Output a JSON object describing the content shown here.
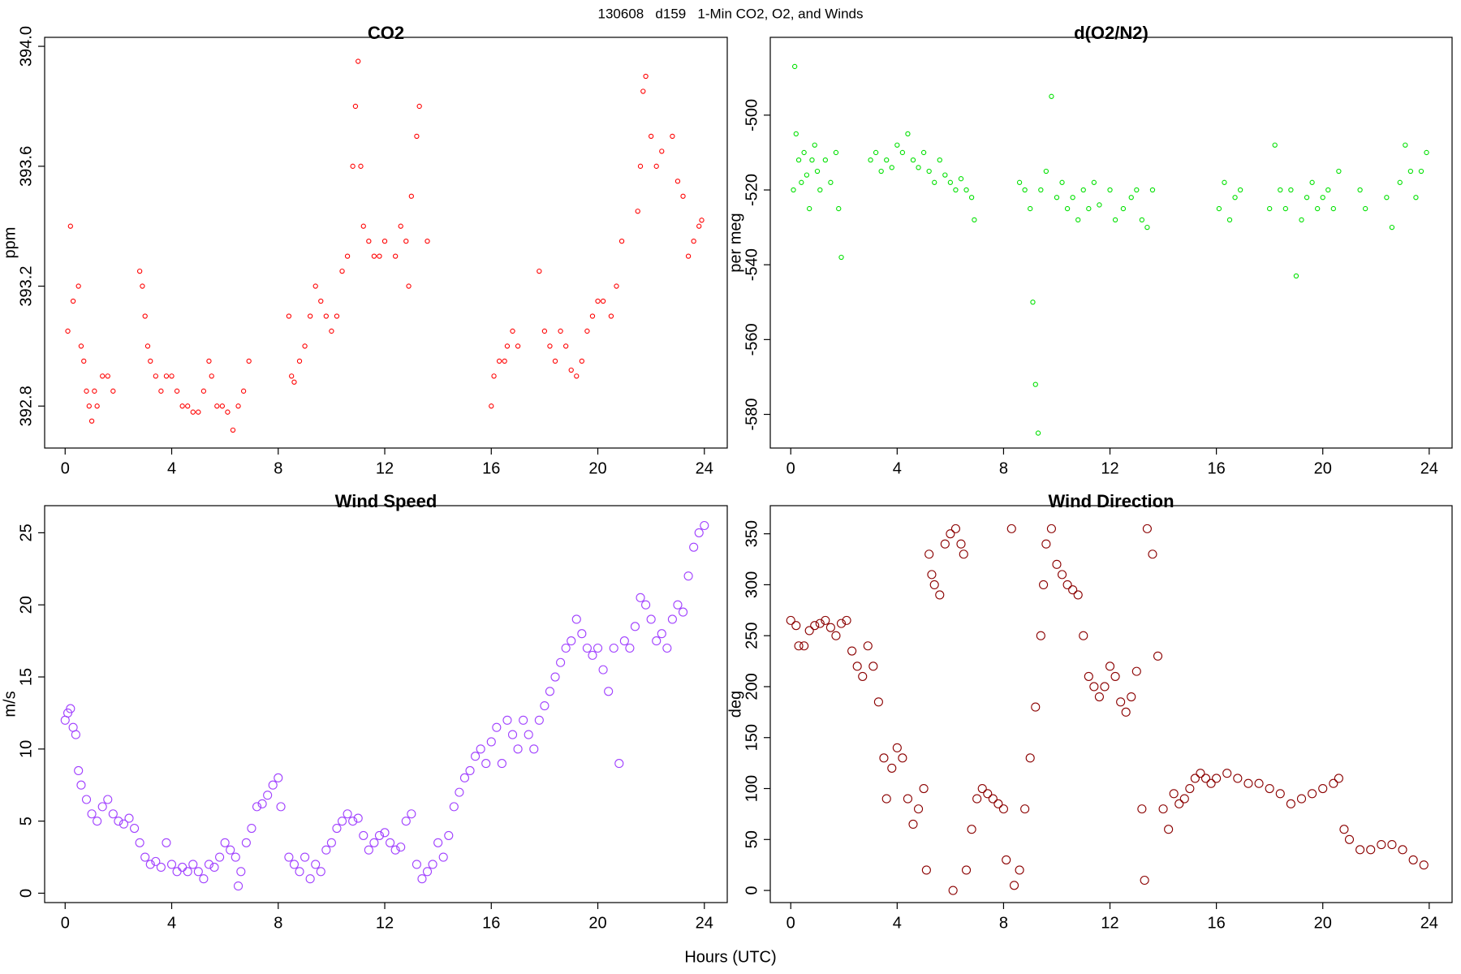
{
  "title": "130608   d159   1-Min CO2, O2, and Winds",
  "xlabel": "Hours (UTC)",
  "chart_data": [
    {
      "type": "scatter",
      "title": "CO2",
      "ylabel": "ppm",
      "xlim": [
        -0.77,
        24.86
      ],
      "xticks": [
        0,
        4,
        8,
        12,
        16,
        20,
        24
      ],
      "ylim": [
        392.66,
        394.03
      ],
      "yticks": [
        392.8,
        393.2,
        393.6,
        {
          "value": 394,
          "label": "394.0"
        }
      ],
      "series": [
        {
          "name": "CO2",
          "color": "#ff0000",
          "x": [
            0.1,
            0.2,
            0.3,
            0.5,
            0.6,
            0.7,
            0.8,
            0.9,
            1.0,
            1.1,
            1.2,
            1.4,
            1.6,
            1.8,
            2.8,
            2.9,
            3.0,
            3.1,
            3.2,
            3.4,
            3.6,
            3.8,
            4.0,
            4.2,
            4.4,
            4.6,
            4.8,
            5.0,
            5.2,
            5.4,
            5.5,
            5.7,
            5.9,
            6.1,
            6.3,
            6.5,
            6.7,
            6.9,
            8.4,
            8.5,
            8.6,
            8.8,
            9.0,
            9.2,
            9.4,
            9.6,
            9.8,
            10.0,
            10.2,
            10.4,
            10.6,
            10.8,
            10.9,
            11.0,
            11.1,
            11.2,
            11.4,
            11.6,
            11.8,
            12.0,
            12.4,
            12.6,
            12.8,
            12.9,
            13.0,
            13.2,
            13.3,
            13.6,
            16.0,
            16.1,
            16.3,
            16.5,
            16.6,
            16.8,
            17.0,
            17.8,
            18.0,
            18.2,
            18.4,
            18.6,
            18.8,
            19.0,
            19.2,
            19.4,
            19.6,
            19.8,
            20.0,
            20.2,
            20.5,
            20.7,
            20.9,
            21.5,
            21.6,
            21.7,
            21.8,
            22.0,
            22.2,
            22.4,
            22.8,
            23.0,
            23.2,
            23.4,
            23.6,
            23.8,
            23.9
          ],
          "values": [
            393.05,
            393.4,
            393.15,
            393.2,
            393.0,
            392.95,
            392.85,
            392.8,
            392.75,
            392.85,
            392.8,
            392.9,
            392.9,
            392.85,
            393.25,
            393.2,
            393.1,
            393.0,
            392.95,
            392.9,
            392.85,
            392.9,
            392.9,
            392.85,
            392.8,
            392.8,
            392.78,
            392.78,
            392.85,
            392.95,
            392.9,
            392.8,
            392.8,
            392.78,
            392.72,
            392.8,
            392.85,
            392.95,
            393.1,
            392.9,
            392.88,
            392.95,
            393.0,
            393.1,
            393.2,
            393.15,
            393.1,
            393.05,
            393.1,
            393.25,
            393.3,
            393.6,
            393.8,
            393.95,
            393.6,
            393.4,
            393.35,
            393.3,
            393.3,
            393.35,
            393.3,
            393.4,
            393.35,
            393.2,
            393.5,
            393.7,
            393.8,
            393.35,
            392.8,
            392.9,
            392.95,
            392.95,
            393.0,
            393.05,
            393.0,
            393.25,
            393.05,
            393.0,
            392.95,
            393.05,
            393.0,
            392.92,
            392.9,
            392.95,
            393.05,
            393.1,
            393.15,
            393.15,
            393.1,
            393.2,
            393.35,
            393.45,
            393.6,
            393.85,
            393.9,
            393.7,
            393.6,
            393.65,
            393.7,
            393.55,
            393.5,
            393.3,
            393.35,
            393.4,
            393.42
          ]
        }
      ]
    },
    {
      "type": "scatter",
      "title": "d(O2/N2)",
      "ylabel": "per meg",
      "xlim": [
        -0.77,
        24.86
      ],
      "xticks": [
        0,
        4,
        8,
        12,
        16,
        20,
        24
      ],
      "ylim": [
        -589.0,
        -479.2
      ],
      "yticks": [
        -580,
        -560,
        -540,
        -520,
        -500
      ],
      "series": [
        {
          "name": "d(O2/N2)",
          "color": "#00e000",
          "x": [
            0.1,
            0.15,
            0.2,
            0.3,
            0.4,
            0.5,
            0.6,
            0.7,
            0.8,
            0.9,
            1.0,
            1.1,
            1.3,
            1.5,
            1.7,
            1.8,
            1.9,
            3.0,
            3.2,
            3.4,
            3.6,
            3.8,
            4.0,
            4.2,
            4.4,
            4.6,
            4.8,
            5.0,
            5.2,
            5.4,
            5.6,
            5.8,
            6.0,
            6.2,
            6.4,
            6.6,
            6.8,
            6.9,
            8.6,
            8.8,
            9.0,
            9.1,
            9.2,
            9.3,
            9.4,
            9.6,
            9.8,
            10.0,
            10.2,
            10.4,
            10.6,
            10.8,
            11.0,
            11.2,
            11.4,
            11.6,
            12.0,
            12.2,
            12.5,
            12.8,
            13.0,
            13.2,
            13.4,
            13.6,
            16.1,
            16.3,
            16.5,
            16.7,
            16.9,
            18.0,
            18.2,
            18.4,
            18.6,
            18.8,
            19.0,
            19.2,
            19.4,
            19.6,
            19.8,
            20.0,
            20.2,
            20.4,
            20.6,
            21.4,
            21.6,
            22.4,
            22.6,
            22.9,
            23.1,
            23.3,
            23.5,
            23.7,
            23.9
          ],
          "values": [
            -520,
            -487,
            -505,
            -512,
            -518,
            -510,
            -516,
            -525,
            -512,
            -508,
            -515,
            -520,
            -512,
            -518,
            -510,
            -525,
            -538,
            -512,
            -510,
            -515,
            -512,
            -514,
            -508,
            -510,
            -505,
            -512,
            -514,
            -510,
            -515,
            -518,
            -512,
            -516,
            -518,
            -520,
            -517,
            -520,
            -522,
            -528,
            -518,
            -520,
            -525,
            -550,
            -572,
            -585,
            -520,
            -515,
            -495,
            -522,
            -518,
            -525,
            -522,
            -528,
            -520,
            -525,
            -518,
            -524,
            -520,
            -528,
            -525,
            -522,
            -520,
            -528,
            -530,
            -520,
            -525,
            -518,
            -528,
            -522,
            -520,
            -525,
            -508,
            -520,
            -525,
            -520,
            -543,
            -528,
            -522,
            -518,
            -525,
            -522,
            -520,
            -525,
            -515,
            -520,
            -525,
            -522,
            -530,
            -518,
            -508,
            -515,
            -522,
            -515,
            -510
          ]
        }
      ]
    },
    {
      "type": "scatter",
      "title": "Wind Speed",
      "ylabel": "m/s",
      "xlim": [
        -0.77,
        24.86
      ],
      "xticks": [
        0,
        4,
        8,
        12,
        16,
        20,
        24
      ],
      "ylim": [
        -0.65,
        26.88
      ],
      "yticks": [
        0,
        5,
        10,
        15,
        20,
        25
      ],
      "series": [
        {
          "name": "Wind Speed",
          "color": "#a040ff",
          "x": [
            0.0,
            0.1,
            0.2,
            0.3,
            0.4,
            0.5,
            0.6,
            0.8,
            1.0,
            1.2,
            1.4,
            1.6,
            1.8,
            2.0,
            2.2,
            2.4,
            2.6,
            2.8,
            3.0,
            3.2,
            3.4,
            3.6,
            3.8,
            4.0,
            4.2,
            4.4,
            4.6,
            4.8,
            5.0,
            5.2,
            5.4,
            5.6,
            5.8,
            6.0,
            6.2,
            6.4,
            6.5,
            6.6,
            6.8,
            7.0,
            7.2,
            7.4,
            7.6,
            7.8,
            8.0,
            8.1,
            8.4,
            8.6,
            8.8,
            9.0,
            9.2,
            9.4,
            9.6,
            9.8,
            10.0,
            10.2,
            10.4,
            10.6,
            10.8,
            11.0,
            11.2,
            11.4,
            11.6,
            11.8,
            12.0,
            12.2,
            12.4,
            12.6,
            12.8,
            13.0,
            13.2,
            13.4,
            13.6,
            13.8,
            14.0,
            14.2,
            14.4,
            14.6,
            14.8,
            15.0,
            15.2,
            15.4,
            15.6,
            15.8,
            16.0,
            16.2,
            16.4,
            16.6,
            16.8,
            17.0,
            17.2,
            17.4,
            17.6,
            17.8,
            18.0,
            18.2,
            18.4,
            18.6,
            18.8,
            19.0,
            19.2,
            19.4,
            19.6,
            19.8,
            20.0,
            20.2,
            20.4,
            20.6,
            20.8,
            21.0,
            21.2,
            21.4,
            21.6,
            21.8,
            22.0,
            22.2,
            22.4,
            22.6,
            22.8,
            23.0,
            23.2,
            23.4,
            23.6,
            23.8,
            24.0
          ],
          "values": [
            12,
            12.5,
            12.8,
            11.5,
            11,
            8.5,
            7.5,
            6.5,
            5.5,
            5,
            6,
            6.5,
            5.5,
            5,
            4.8,
            5.2,
            4.5,
            3.5,
            2.5,
            2,
            2.2,
            1.8,
            3.5,
            2,
            1.5,
            1.8,
            1.5,
            2,
            1.5,
            1,
            2,
            1.8,
            2.5,
            3.5,
            3,
            2.5,
            0.5,
            1.5,
            3.5,
            4.5,
            6,
            6.2,
            6.8,
            7.5,
            8,
            6,
            2.5,
            2,
            1.5,
            2.5,
            1,
            2,
            1.5,
            3,
            3.5,
            4.5,
            5,
            5.5,
            5,
            5.2,
            4,
            3,
            3.5,
            4,
            4.2,
            3.5,
            3,
            3.2,
            5,
            5.5,
            2,
            1,
            1.5,
            2,
            3.5,
            2.5,
            4,
            6,
            7,
            8,
            8.5,
            9.5,
            10,
            9,
            10.5,
            11.5,
            9,
            12,
            11,
            10,
            12,
            11,
            10,
            12,
            13,
            14,
            15,
            16,
            17,
            17.5,
            19,
            18,
            17,
            16.5,
            17,
            15.5,
            14,
            17,
            9,
            17.5,
            17,
            18.5,
            20.5,
            20,
            19,
            17.5,
            18,
            17,
            19,
            20,
            19.5,
            22,
            24,
            25,
            25.5
          ]
        }
      ]
    },
    {
      "type": "scatter",
      "title": "Wind Direction",
      "ylabel": "deg",
      "xlim": [
        -0.77,
        24.86
      ],
      "xticks": [
        0,
        4,
        8,
        12,
        16,
        20,
        24
      ],
      "ylim": [
        -11.9,
        377.6
      ],
      "yticks": [
        0,
        50,
        100,
        150,
        200,
        250,
        300,
        350
      ],
      "series": [
        {
          "name": "Wind Direction",
          "color": "#8b0000",
          "x": [
            0.0,
            0.2,
            0.3,
            0.5,
            0.7,
            0.9,
            1.1,
            1.3,
            1.5,
            1.7,
            1.9,
            2.1,
            2.3,
            2.5,
            2.7,
            2.9,
            3.1,
            3.3,
            3.5,
            3.6,
            3.8,
            4.0,
            4.2,
            4.4,
            4.6,
            4.8,
            5.0,
            5.1,
            5.2,
            5.3,
            5.4,
            5.6,
            5.8,
            6.0,
            6.1,
            6.2,
            6.4,
            6.5,
            6.6,
            6.8,
            7.0,
            7.2,
            7.4,
            7.6,
            7.8,
            8.0,
            8.1,
            8.3,
            8.4,
            8.6,
            8.8,
            9.0,
            9.2,
            9.4,
            9.5,
            9.6,
            9.8,
            10.0,
            10.2,
            10.4,
            10.6,
            10.8,
            11.0,
            11.2,
            11.4,
            11.6,
            11.8,
            12.0,
            12.2,
            12.4,
            12.6,
            12.8,
            13.0,
            13.2,
            13.3,
            13.4,
            13.6,
            13.8,
            14.0,
            14.2,
            14.4,
            14.6,
            14.8,
            15.0,
            15.2,
            15.4,
            15.6,
            15.8,
            16.0,
            16.4,
            16.8,
            17.2,
            17.6,
            18.0,
            18.4,
            18.8,
            19.2,
            19.6,
            20.0,
            20.4,
            20.6,
            20.8,
            21.0,
            21.4,
            21.8,
            22.2,
            22.6,
            23.0,
            23.4,
            23.8
          ],
          "values": [
            265,
            260,
            240,
            240,
            255,
            260,
            262,
            265,
            258,
            250,
            262,
            265,
            235,
            220,
            210,
            240,
            220,
            185,
            130,
            90,
            120,
            140,
            130,
            90,
            65,
            80,
            100,
            20,
            330,
            310,
            300,
            290,
            340,
            350,
            0,
            355,
            340,
            330,
            20,
            60,
            90,
            100,
            95,
            90,
            85,
            80,
            30,
            355,
            5,
            20,
            80,
            130,
            180,
            250,
            300,
            340,
            355,
            320,
            310,
            300,
            295,
            290,
            250,
            210,
            200,
            190,
            200,
            220,
            210,
            185,
            175,
            190,
            215,
            80,
            10,
            355,
            330,
            230,
            80,
            60,
            95,
            85,
            90,
            100,
            110,
            115,
            110,
            105,
            110,
            115,
            110,
            105,
            105,
            100,
            95,
            85,
            90,
            95,
            100,
            105,
            110,
            60,
            50,
            40,
            40,
            45,
            45,
            40,
            30,
            25
          ]
        }
      ]
    }
  ]
}
